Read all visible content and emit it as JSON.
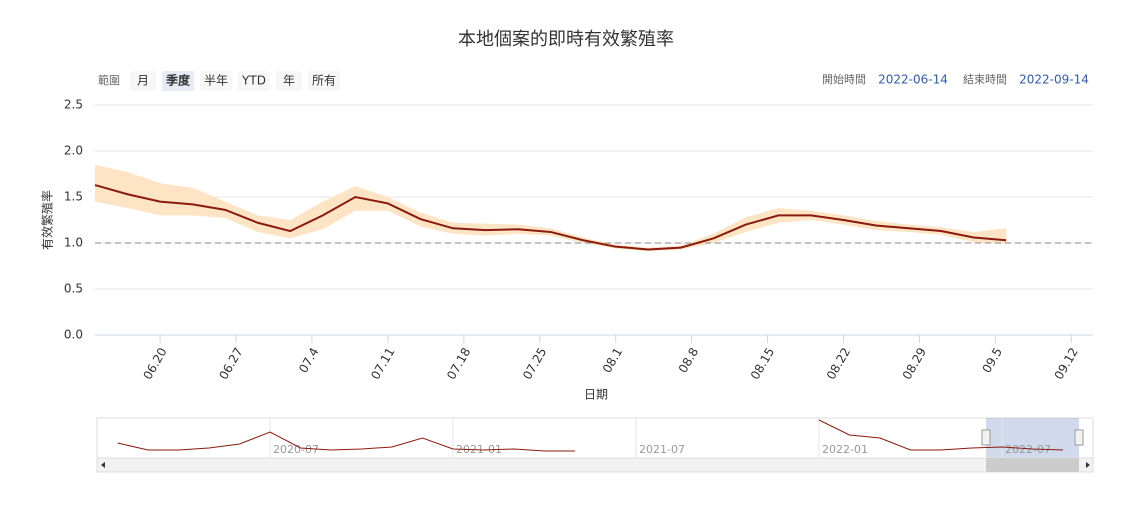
{
  "chart_data": {
    "type": "line",
    "title": "本地個案的即時有效繁殖率",
    "range_selector": {
      "label": "範圍",
      "buttons": [
        "月",
        "季度",
        "半年",
        "YTD",
        "年",
        "所有"
      ],
      "selected": 1
    },
    "range_inputs": {
      "start_label": "開始時間",
      "start": "2022-06-14",
      "end_label": "結束時間",
      "end": "2022-09-14"
    },
    "y_label": "有效繁殖率",
    "x_label": "日期",
    "xlim": [
      "2022-06-14",
      "2022-09-14"
    ],
    "xticks": [
      {
        "value": "2022-06-20",
        "label": "06.20"
      },
      {
        "value": "2022-06-27",
        "label": "06.27"
      },
      {
        "value": "2022-07-04",
        "label": "07.4"
      },
      {
        "value": "2022-07-11",
        "label": "07.11"
      },
      {
        "value": "2022-07-18",
        "label": "07.18"
      },
      {
        "value": "2022-07-25",
        "label": "07.25"
      },
      {
        "value": "2022-08-01",
        "label": "08.1"
      },
      {
        "value": "2022-08-08",
        "label": "08.8"
      },
      {
        "value": "2022-08-15",
        "label": "08.15"
      },
      {
        "value": "2022-08-22",
        "label": "08.22"
      },
      {
        "value": "2022-08-29",
        "label": "08.29"
      },
      {
        "value": "2022-09-05",
        "label": "09.5"
      },
      {
        "value": "2022-09-12",
        "label": "09.12"
      }
    ],
    "ylim": [
      0,
      2.5
    ],
    "yticks": [
      {
        "value": 0,
        "label": "0.0"
      },
      0.5,
      {
        "value": 1,
        "label": "1.0"
      },
      1.5,
      {
        "value": 2,
        "label": "2.0"
      },
      2.5
    ],
    "grid": true,
    "reference_line": 1,
    "x": [
      "2022-06-14",
      "2022-06-17",
      "2022-06-20",
      "2022-06-23",
      "2022-06-26",
      "2022-06-29",
      "2022-07-02",
      "2022-07-05",
      "2022-07-08",
      "2022-07-11",
      "2022-07-14",
      "2022-07-17",
      "2022-07-20",
      "2022-07-23",
      "2022-07-26",
      "2022-07-29",
      "2022-08-01",
      "2022-08-04",
      "2022-08-07",
      "2022-08-10",
      "2022-08-13",
      "2022-08-16",
      "2022-08-19",
      "2022-08-22",
      "2022-08-25",
      "2022-08-28",
      "2022-08-31",
      "2022-09-03",
      "2022-09-06"
    ],
    "series": [
      {
        "color": "#8b1a0e",
        "values": [
          1.63,
          1.53,
          1.45,
          1.42,
          1.36,
          1.22,
          1.13,
          1.3,
          1.5,
          1.43,
          1.26,
          1.16,
          1.14,
          1.15,
          1.12,
          1.03,
          0.96,
          0.93,
          0.95,
          1.05,
          1.2,
          1.3,
          1.3,
          1.25,
          1.19,
          1.16,
          1.13,
          1.06,
          1.03
        ]
      }
    ],
    "band": {
      "color": "#fde4c4",
      "lower": [
        1.45,
        1.38,
        1.3,
        1.3,
        1.27,
        1.12,
        1.05,
        1.15,
        1.35,
        1.35,
        1.18,
        1.1,
        1.08,
        1.1,
        1.08,
        1.0,
        0.94,
        0.91,
        0.93,
        1.0,
        1.12,
        1.22,
        1.25,
        1.2,
        1.14,
        1.12,
        1.09,
        1.01,
        0.99
      ],
      "upper": [
        1.85,
        1.77,
        1.65,
        1.6,
        1.45,
        1.3,
        1.25,
        1.45,
        1.62,
        1.5,
        1.33,
        1.22,
        1.21,
        1.2,
        1.16,
        1.06,
        0.98,
        0.95,
        0.97,
        1.1,
        1.28,
        1.38,
        1.35,
        1.3,
        1.24,
        1.2,
        1.17,
        1.12,
        1.16
      ]
    },
    "navigator": {
      "ylim": [
        0,
        4
      ],
      "x": [
        "2020-02",
        "2020-03",
        "2020-04",
        "2020-05",
        "2020-06",
        "2020-07",
        "2020-08",
        "2020-09",
        "2020-10",
        "2020-11",
        "2020-12",
        "2021-01",
        "2021-02",
        "2021-03",
        "2021-04",
        "2021-05",
        "2021-06",
        "2021-07",
        "2021-08",
        "2021-09",
        "2021-10",
        "2021-11",
        "2021-12",
        "2022-01",
        "2022-02",
        "2022-03",
        "2022-04",
        "2022-05",
        "2022-06",
        "2022-07",
        "2022-08",
        "2022-09"
      ],
      "values": [
        1.7,
        1.0,
        1.0,
        1.2,
        1.6,
        2.8,
        1.2,
        1.0,
        1.1,
        1.3,
        2.2,
        1.1,
        1.0,
        1.1,
        0.9,
        0.9,
        null,
        null,
        null,
        null,
        null,
        null,
        null,
        4.0,
        2.5,
        2.2,
        1.0,
        1.0,
        1.2,
        1.3,
        1.1,
        1.0
      ],
      "labels": [
        "2020-07",
        "2021-01",
        "2021-07",
        "2022-01",
        "2022-07"
      ]
    }
  }
}
